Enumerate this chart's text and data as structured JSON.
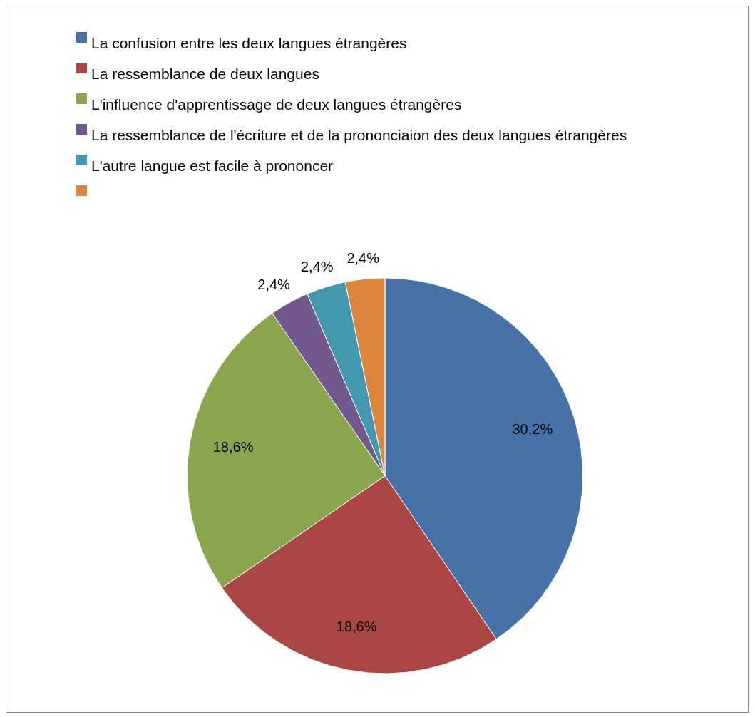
{
  "chart_data": {
    "type": "pie",
    "categories": [
      "La confusion entre les deux langues étrangères",
      "La ressemblance de deux langues",
      "L'influence d'apprentissage de deux langues étrangères",
      "La ressemblance de l'écriture et de la prononciaion des deux langues étrangères",
      "L'autre langue est facile à prononcer",
      null
    ],
    "values": [
      30.2,
      18.6,
      18.6,
      2.4,
      2.4,
      2.4
    ],
    "colors": [
      "#4672a8",
      "#aa4744",
      "#89a54e",
      "#71588f",
      "#4298af",
      "#db843d"
    ],
    "value_labels": [
      "30,2%",
      "18,6%",
      "18,6%",
      "2,4%",
      "2,4%",
      "2,4%"
    ],
    "legend": "top left"
  }
}
